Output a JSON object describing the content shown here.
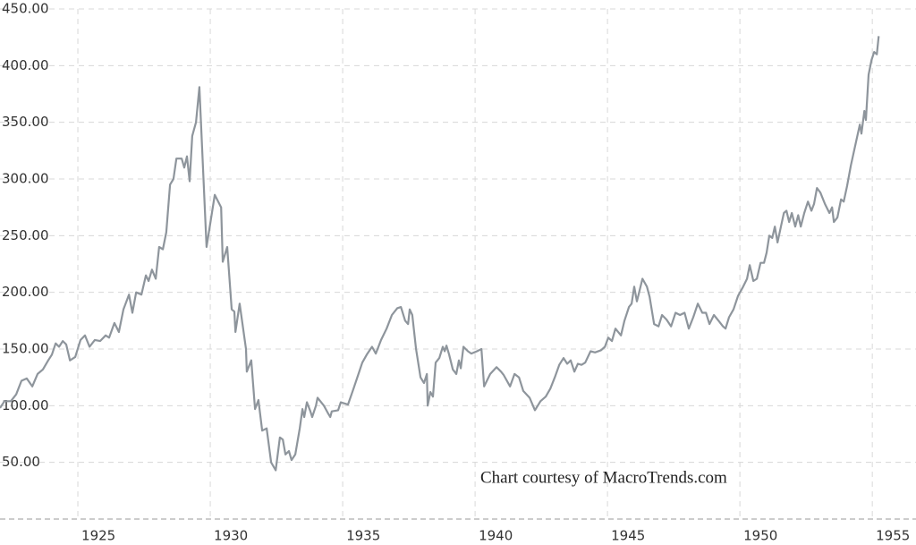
{
  "chart_data": {
    "type": "line",
    "annotation": "Chart courtesy of MacroTrends.com",
    "x": [
      1922.06,
      1922.23,
      1922.47,
      1922.67,
      1922.87,
      1923.07,
      1923.28,
      1923.48,
      1923.68,
      1923.88,
      1924.02,
      1924.16,
      1924.29,
      1924.43,
      1924.56,
      1924.7,
      1924.9,
      1925.1,
      1925.27,
      1925.44,
      1925.64,
      1925.84,
      1926.05,
      1926.18,
      1926.38,
      1926.55,
      1926.72,
      1926.93,
      1927.06,
      1927.2,
      1927.4,
      1927.57,
      1927.67,
      1927.8,
      1927.94,
      1928.07,
      1928.21,
      1928.34,
      1928.48,
      1928.61,
      1928.72,
      1928.92,
      1929.02,
      1929.12,
      1929.22,
      1929.32,
      1929.46,
      1929.59,
      1929.86,
      1930.17,
      1930.41,
      1930.47,
      1930.64,
      1930.81,
      1930.91,
      1930.95,
      1931.11,
      1931.35,
      1931.38,
      1931.55,
      1931.69,
      1931.82,
      1931.96,
      1932.13,
      1932.3,
      1932.47,
      1932.63,
      1932.74,
      1932.84,
      1932.97,
      1933.07,
      1933.21,
      1933.38,
      1933.48,
      1933.55,
      1933.65,
      1933.78,
      1933.85,
      1933.99,
      1934.05,
      1934.29,
      1934.43,
      1934.53,
      1934.59,
      1934.83,
      1934.93,
      1935.2,
      1935.41,
      1935.57,
      1935.74,
      1935.91,
      1936.11,
      1936.25,
      1936.45,
      1936.66,
      1936.86,
      1937.06,
      1937.2,
      1937.36,
      1937.47,
      1937.53,
      1937.63,
      1937.77,
      1937.94,
      1938.07,
      1938.18,
      1938.21,
      1938.31,
      1938.41,
      1938.51,
      1938.65,
      1938.78,
      1938.85,
      1938.92,
      1939.02,
      1939.16,
      1939.29,
      1939.39,
      1939.46,
      1939.56,
      1939.73,
      1939.86,
      1940.07,
      1940.24,
      1940.34,
      1940.57,
      1940.81,
      1940.98,
      1941.08,
      1941.32,
      1941.49,
      1941.66,
      1941.82,
      1942.06,
      1942.26,
      1942.47,
      1942.67,
      1942.84,
      1943.01,
      1943.18,
      1943.34,
      1943.48,
      1943.61,
      1943.75,
      1943.88,
      1944.02,
      1944.16,
      1944.36,
      1944.53,
      1944.76,
      1944.9,
      1945.03,
      1945.17,
      1945.3,
      1945.51,
      1945.64,
      1945.81,
      1945.91,
      1946.01,
      1946.11,
      1946.32,
      1946.49,
      1946.59,
      1946.76,
      1946.93,
      1947.06,
      1947.23,
      1947.4,
      1947.57,
      1947.74,
      1947.91,
      1948.07,
      1948.24,
      1948.41,
      1948.58,
      1948.72,
      1948.85,
      1949.02,
      1949.19,
      1949.36,
      1949.46,
      1949.59,
      1949.76,
      1949.93,
      1950.1,
      1950.27,
      1950.37,
      1950.51,
      1950.64,
      1950.78,
      1950.91,
      1951.01,
      1951.11,
      1951.22,
      1951.32,
      1951.42,
      1951.55,
      1951.66,
      1951.76,
      1951.86,
      1951.96,
      1952.09,
      1952.2,
      1952.3,
      1952.43,
      1952.57,
      1952.7,
      1952.8,
      1952.91,
      1953.04,
      1953.21,
      1953.38,
      1953.48,
      1953.55,
      1953.68,
      1953.82,
      1953.92,
      1954.05,
      1954.19,
      1954.36,
      1954.53,
      1954.59,
      1954.7,
      1954.76,
      1954.86,
      1954.97,
      1955.07,
      1955.17,
      1955.24
    ],
    "series": [
      {
        "color": "#8e959c",
        "values": [
          98,
          104,
          104,
          110,
          122,
          124,
          117,
          128,
          132,
          140,
          145,
          155,
          152,
          157,
          154,
          140,
          143,
          158,
          162,
          152,
          158,
          157,
          162,
          160,
          173,
          165,
          185,
          198,
          182,
          200,
          198,
          215,
          210,
          220,
          212,
          240,
          238,
          253,
          295,
          300,
          318,
          318,
          310,
          320,
          298,
          338,
          350,
          381,
          240,
          286,
          275,
          227,
          240,
          185,
          183,
          165,
          190,
          150,
          130,
          140,
          97,
          105,
          78,
          80,
          50,
          43,
          72,
          70,
          57,
          60,
          52,
          57,
          80,
          97,
          90,
          103,
          95,
          90,
          100,
          107,
          100,
          94,
          90,
          95,
          96,
          103,
          101,
          115,
          126,
          138,
          145,
          152,
          146,
          158,
          168,
          180,
          186,
          187,
          175,
          172,
          185,
          180,
          150,
          125,
          120,
          128,
          100,
          112,
          108,
          138,
          142,
          152,
          148,
          153,
          145,
          132,
          128,
          140,
          133,
          152,
          148,
          146,
          148,
          150,
          117,
          128,
          134,
          130,
          127,
          117,
          128,
          125,
          113,
          107,
          96,
          104,
          108,
          115,
          125,
          136,
          142,
          137,
          140,
          130,
          137,
          136,
          138,
          148,
          147,
          149,
          152,
          160,
          157,
          168,
          162,
          175,
          187,
          190,
          205,
          192,
          212,
          205,
          196,
          172,
          170,
          180,
          176,
          170,
          182,
          180,
          182,
          168,
          178,
          190,
          182,
          182,
          172,
          180,
          175,
          170,
          168,
          178,
          185,
          197,
          204,
          212,
          224,
          210,
          212,
          226,
          226,
          235,
          250,
          248,
          258,
          244,
          258,
          270,
          272,
          262,
          270,
          258,
          268,
          258,
          270,
          280,
          272,
          278,
          292,
          288,
          278,
          270,
          275,
          262,
          266,
          282,
          280,
          294,
          312,
          330,
          348,
          340,
          360,
          352,
          392,
          405,
          412,
          410,
          426
        ]
      }
    ],
    "xlim": [
      1922.06,
      1956.65
    ],
    "xticks": [
      1925,
      1930,
      1935,
      1940,
      1945,
      1950,
      1955
    ],
    "ylim": [
      0,
      450
    ],
    "yticks": [
      {
        "value": 50,
        "label": "50.00"
      },
      {
        "value": 100,
        "label": "100.00"
      },
      {
        "value": 150,
        "label": "150.00"
      },
      {
        "value": 200,
        "label": "200.00"
      },
      {
        "value": 250,
        "label": "250.00"
      },
      {
        "value": 300,
        "label": "300.00"
      },
      {
        "value": 350,
        "label": "350.00"
      },
      {
        "value": 400,
        "label": "400.00"
      },
      {
        "value": 450,
        "label": "450.00"
      }
    ],
    "grid": true
  }
}
